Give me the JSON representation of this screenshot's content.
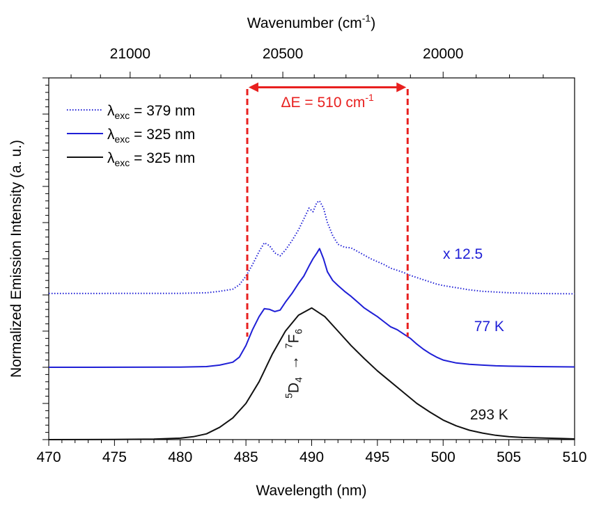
{
  "chart_data": {
    "type": "line",
    "xlabel": "Wavelength (nm)",
    "xlim": [
      470,
      510
    ],
    "x_ticks": [
      "470",
      "475",
      "480",
      "485",
      "490",
      "495",
      "500",
      "505",
      "510"
    ],
    "top_axis": {
      "label_main": "Wavenumber (cm",
      "label_sup": "-1",
      "label_close": ")",
      "ticks": [
        {
          "label": "21000",
          "wavenumber": 21000
        },
        {
          "label": "20500",
          "wavenumber": 20500
        },
        {
          "label": "20000",
          "wavenumber": 20000
        }
      ]
    },
    "ylabel": "Normalized Emission Intensity (a. u.)",
    "ylim": [
      0,
      5.0
    ],
    "y_tick_labels": "none",
    "legend": {
      "placement": "top-left",
      "entries": [
        {
          "pre": "λ",
          "sub": "exc",
          "post": " = 379 nm",
          "series": "dotted-blue"
        },
        {
          "pre": "λ",
          "sub": "exc",
          "post": " = 325 nm",
          "series": "solid-blue"
        },
        {
          "pre": "λ",
          "sub": "exc",
          "post": " = 325 nm",
          "series": "solid-black"
        }
      ]
    },
    "series": [
      {
        "key": "dotted-blue",
        "color": "#1f1fd6",
        "style": "dotted",
        "offset": 2.0,
        "scale": 12.5,
        "x": [
          470,
          480,
          482,
          483,
          484,
          484.5,
          485,
          485.5,
          486,
          486.4,
          486.8,
          487.2,
          487.6,
          488,
          488.5,
          489,
          489.4,
          489.8,
          490.1,
          490.4,
          490.6,
          490.9,
          491.2,
          491.6,
          492,
          492.5,
          493,
          493.5,
          494,
          494.5,
          495,
          495.5,
          496,
          496.5,
          497,
          497.5,
          498,
          498.5,
          499,
          499.5,
          500,
          501,
          502,
          503,
          504,
          505,
          507,
          510
        ],
        "y": [
          0.02,
          0.022,
          0.03,
          0.05,
          0.08,
          0.14,
          0.26,
          0.42,
          0.6,
          0.72,
          0.68,
          0.58,
          0.54,
          0.62,
          0.75,
          0.9,
          1.05,
          1.2,
          1.15,
          1.28,
          1.3,
          1.2,
          1.0,
          0.82,
          0.7,
          0.66,
          0.65,
          0.6,
          0.55,
          0.5,
          0.46,
          0.42,
          0.37,
          0.34,
          0.31,
          0.27,
          0.24,
          0.21,
          0.18,
          0.15,
          0.13,
          0.1,
          0.07,
          0.05,
          0.04,
          0.03,
          0.02,
          0.015
        ]
      },
      {
        "key": "solid-blue",
        "color": "#1f1fd6",
        "style": "solid",
        "offset": 1.0,
        "x": [
          470,
          480,
          482,
          483,
          484,
          484.5,
          485,
          485.5,
          486,
          486.4,
          486.8,
          487.2,
          487.6,
          488,
          488.5,
          489,
          489.4,
          489.8,
          490.1,
          490.4,
          490.6,
          490.9,
          491.2,
          491.6,
          492,
          492.5,
          493,
          493.5,
          494,
          494.5,
          495,
          495.5,
          496,
          496.5,
          497,
          497.5,
          498,
          498.5,
          499,
          499.5,
          500,
          501,
          502,
          503,
          504,
          505,
          507,
          510
        ],
        "y": [
          0.0,
          0.002,
          0.01,
          0.03,
          0.07,
          0.14,
          0.3,
          0.52,
          0.7,
          0.81,
          0.8,
          0.77,
          0.79,
          0.9,
          1.02,
          1.16,
          1.26,
          1.4,
          1.5,
          1.58,
          1.64,
          1.5,
          1.32,
          1.2,
          1.13,
          1.05,
          0.98,
          0.9,
          0.82,
          0.76,
          0.7,
          0.63,
          0.56,
          0.52,
          0.46,
          0.4,
          0.32,
          0.25,
          0.19,
          0.14,
          0.1,
          0.06,
          0.04,
          0.03,
          0.02,
          0.015,
          0.01,
          0.005
        ]
      },
      {
        "key": "solid-black",
        "color": "#111111",
        "style": "solid",
        "offset": 0.0,
        "x": [
          470,
          475,
          478,
          480,
          481,
          482,
          483,
          484,
          485,
          486,
          487,
          488,
          489,
          490,
          491,
          492,
          493,
          494,
          495,
          496,
          497,
          498,
          499,
          500,
          501,
          502,
          503,
          504,
          505,
          506,
          507,
          508,
          509,
          510
        ],
        "y": [
          0.0,
          0.002,
          0.008,
          0.02,
          0.04,
          0.08,
          0.17,
          0.3,
          0.5,
          0.8,
          1.18,
          1.5,
          1.72,
          1.82,
          1.7,
          1.5,
          1.3,
          1.12,
          0.95,
          0.8,
          0.65,
          0.5,
          0.38,
          0.27,
          0.19,
          0.13,
          0.09,
          0.06,
          0.04,
          0.03,
          0.025,
          0.02,
          0.015,
          0.01
        ]
      }
    ],
    "annotations": {
      "delta_e": {
        "pre": "ΔE = 510 cm",
        "sup": "-1",
        "x1": 485.1,
        "x2": 497.3,
        "arrow_y": 4.87,
        "color": "#e8201f"
      },
      "scale_label": {
        "text": "x 12.5",
        "x": 501.5,
        "y": 2.5,
        "color": "#1f1fd6"
      },
      "label_77k": {
        "text": "77 K",
        "x": 503.5,
        "y": 1.5,
        "color": "#1f1fd6"
      },
      "label_293k": {
        "text": "293 K",
        "x": 503.5,
        "y": 0.28,
        "color": "#111111"
      },
      "transition": {
        "upper_sup": "5",
        "upper": "D",
        "upper_sub": "4",
        "arrow": "→",
        "lower_sup": "7",
        "lower": "F",
        "lower_sub": "6",
        "x": 489.0,
        "y": 1.05
      }
    }
  }
}
